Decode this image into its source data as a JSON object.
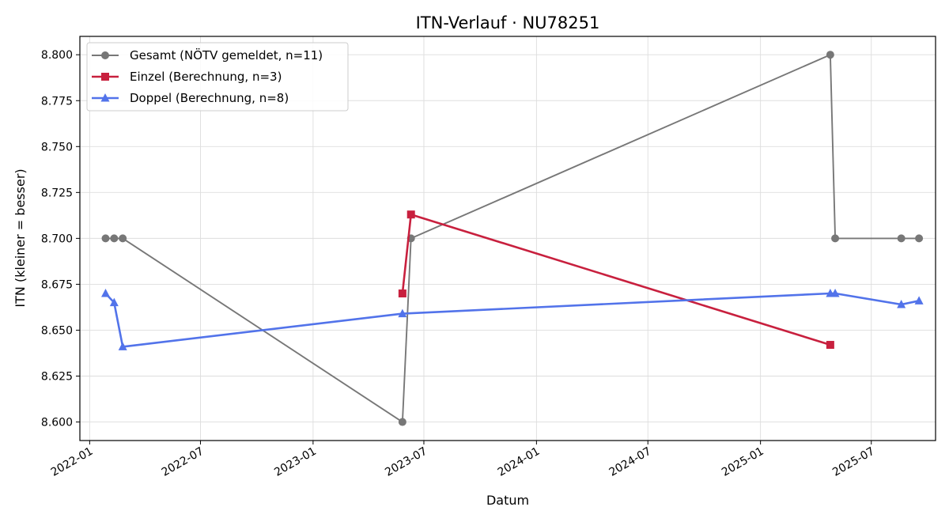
{
  "chart_data": {
    "type": "line",
    "title": "ITN-Verlauf · NU78251",
    "xlabel": "Datum",
    "ylabel": "ITN  (kleiner = besser)",
    "xlim": [
      "2021-12-16",
      "2025-10-14"
    ],
    "ylim": [
      8.5899,
      8.81
    ],
    "x_ticks": [
      "2022-01-01",
      "2022-07-01",
      "2023-01-01",
      "2023-07-01",
      "2024-01-01",
      "2024-07-01",
      "2025-01-01",
      "2025-07-01"
    ],
    "x_tick_labels": [
      "2022-01",
      "2022-07",
      "2023-01",
      "2023-07",
      "2024-01",
      "2024-07",
      "2025-01",
      "2025-07"
    ],
    "y_ticks": [
      8.6,
      8.625,
      8.65,
      8.675,
      8.7,
      8.725,
      8.75,
      8.775,
      8.8
    ],
    "y_tick_labels": [
      "8.600",
      "8.625",
      "8.650",
      "8.675",
      "8.700",
      "8.725",
      "8.750",
      "8.775",
      "8.800"
    ],
    "grid": true,
    "legend": "top-left",
    "series": [
      {
        "name": "Gesamt (NÖTV gemeldet, n=11)",
        "color": "#777777",
        "marker": "circle",
        "points": [
          {
            "x": "2022-01-27",
            "y": 8.7
          },
          {
            "x": "2022-02-10",
            "y": 8.7
          },
          {
            "x": "2022-02-24",
            "y": 8.7
          },
          {
            "x": "2023-05-27",
            "y": 8.6
          },
          {
            "x": "2023-06-10",
            "y": 8.7
          },
          {
            "x": "2025-04-25",
            "y": 8.8
          },
          {
            "x": "2025-05-03",
            "y": 8.7
          },
          {
            "x": "2025-08-19",
            "y": 8.7
          },
          {
            "x": "2025-09-17",
            "y": 8.7
          }
        ]
      },
      {
        "name": "Einzel (Berechnung, n=3)",
        "color": "#c8203e",
        "marker": "square",
        "points": [
          {
            "x": "2023-05-27",
            "y": 8.67
          },
          {
            "x": "2023-06-10",
            "y": 8.713
          },
          {
            "x": "2025-04-25",
            "y": 8.642
          }
        ]
      },
      {
        "name": "Doppel (Berechnung, n=8)",
        "color": "#5273ea",
        "marker": "triangle",
        "points": [
          {
            "x": "2022-01-27",
            "y": 8.67
          },
          {
            "x": "2022-02-10",
            "y": 8.665
          },
          {
            "x": "2022-02-24",
            "y": 8.641
          },
          {
            "x": "2023-05-27",
            "y": 8.659
          },
          {
            "x": "2025-04-25",
            "y": 8.67
          },
          {
            "x": "2025-05-03",
            "y": 8.67
          },
          {
            "x": "2025-08-19",
            "y": 8.664
          },
          {
            "x": "2025-09-17",
            "y": 8.666
          }
        ]
      }
    ]
  }
}
